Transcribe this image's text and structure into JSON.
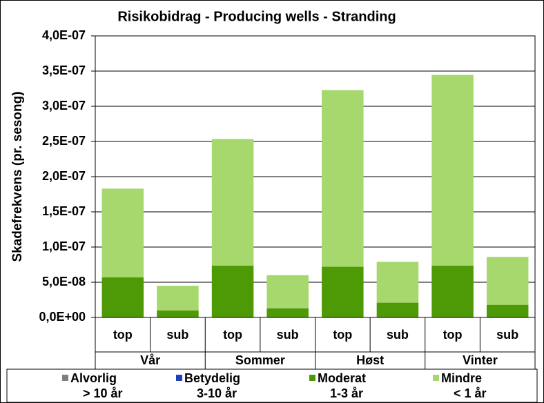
{
  "chart_data": {
    "type": "stacked_bar",
    "title": "Risikobidrag - Producing wells - Stranding",
    "y_label": "Skadefrekvens (pr. sesong)",
    "categories": [
      "top",
      "sub",
      "top",
      "sub",
      "top",
      "sub",
      "top",
      "sub"
    ],
    "groups": [
      "Vår",
      "Sommer",
      "Høst",
      "Vinter"
    ],
    "series": [
      {
        "name": "Alvorlig",
        "range": "> 10 år",
        "color": "#7f7f7f",
        "values": [
          0,
          0,
          0,
          0,
          0,
          0,
          0,
          0
        ]
      },
      {
        "name": "Betydelig",
        "range": "3-10 år",
        "color": "#1f3fbf",
        "values": [
          0,
          0,
          0,
          0,
          0,
          0,
          0,
          0
        ]
      },
      {
        "name": "Moderat",
        "range": "1-3 år",
        "color": "#4e9a06",
        "values": [
          5.7e-08,
          1e-08,
          7.35e-08,
          1.3e-08,
          7.2e-08,
          2.1e-08,
          7.35e-08,
          1.8e-08
        ]
      },
      {
        "name": "Mindre",
        "range": "< 1 år",
        "color": "#a6d86e",
        "values": [
          1.26e-07,
          3.5e-08,
          1.8e-07,
          4.7e-08,
          2.51e-07,
          5.8e-08,
          2.71e-07,
          6.8e-08
        ]
      }
    ],
    "ylim": [
      0,
      4e-07
    ],
    "yticks": [
      {
        "value": 0,
        "label": "0,0E+00"
      },
      {
        "value": 5e-08,
        "label": "5,0E-08"
      },
      {
        "value": 1e-07,
        "label": "1,0E-07"
      },
      {
        "value": 1.5e-07,
        "label": "1,5E-07"
      },
      {
        "value": 2e-07,
        "label": "2,0E-07"
      },
      {
        "value": 2.5e-07,
        "label": "2,5E-07"
      },
      {
        "value": 3e-07,
        "label": "3,0E-07"
      },
      {
        "value": 3.5e-07,
        "label": "3,5E-07"
      },
      {
        "value": 4e-07,
        "label": "4,0E-07"
      }
    ],
    "grid": true
  }
}
